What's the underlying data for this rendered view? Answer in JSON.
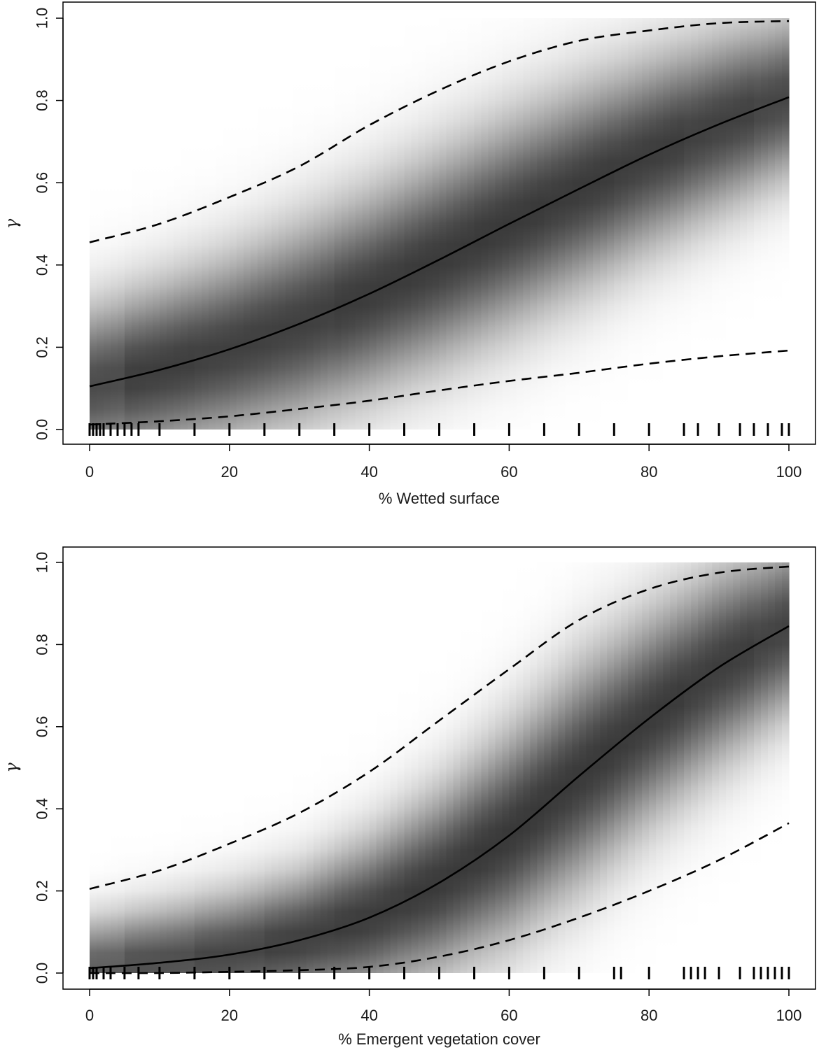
{
  "chart_data": [
    {
      "type": "line",
      "title": "",
      "xlabel": "% Wetted surface",
      "ylabel": "γ",
      "xlim": [
        0,
        100
      ],
      "ylim": [
        0,
        1
      ],
      "xticks": [
        "0",
        "20",
        "40",
        "60",
        "80",
        "100"
      ],
      "yticks": [
        "0.0",
        "0.2",
        "0.4",
        "0.6",
        "0.8",
        "1.0"
      ],
      "grid": false,
      "background": "grayscale posterior density shading",
      "x": [
        0,
        10,
        20,
        30,
        40,
        50,
        60,
        70,
        80,
        90,
        100
      ],
      "series": [
        {
          "name": "",
          "style": "solid",
          "values": [
            0.105,
            0.145,
            0.195,
            0.257,
            0.33,
            0.413,
            0.5,
            0.585,
            0.668,
            0.742,
            0.808
          ]
        },
        {
          "name": "",
          "style": "dashed",
          "values": [
            0.455,
            0.5,
            0.565,
            0.64,
            0.74,
            0.825,
            0.895,
            0.945,
            0.97,
            0.988,
            0.993
          ]
        },
        {
          "name": "",
          "style": "dashed",
          "values": [
            0.012,
            0.02,
            0.032,
            0.05,
            0.07,
            0.095,
            0.118,
            0.138,
            0.16,
            0.178,
            0.192
          ]
        }
      ],
      "rug": [
        0,
        0.5,
        1,
        1.5,
        2,
        3,
        4,
        5,
        6,
        7,
        10,
        15,
        20,
        25,
        30,
        35,
        40,
        45,
        50,
        55,
        60,
        65,
        70,
        75,
        80,
        85,
        87,
        90,
        93,
        95,
        97,
        99,
        100
      ],
      "density": {
        "mean": [
          0.105,
          0.145,
          0.195,
          0.257,
          0.33,
          0.413,
          0.5,
          0.585,
          0.668,
          0.742,
          0.808
        ],
        "sd": [
          0.13,
          0.14,
          0.15,
          0.16,
          0.165,
          0.17,
          0.17,
          0.165,
          0.155,
          0.145,
          0.13
        ],
        "peak_shade": [
          "#4a4a4a",
          "#3d3d3d",
          "#3f3f3f",
          "#3f3f3f",
          "#3b3b3b",
          "#3a3a3a",
          "#393939",
          "#3a3a3a",
          "#3c3c3c",
          "#404040",
          "#454545"
        ]
      }
    },
    {
      "type": "line",
      "title": "",
      "xlabel": "% Emergent vegetation cover",
      "ylabel": "γ",
      "xlim": [
        0,
        100
      ],
      "ylim": [
        0,
        1
      ],
      "xticks": [
        "0",
        "20",
        "40",
        "60",
        "80",
        "100"
      ],
      "yticks": [
        "0.0",
        "0.2",
        "0.4",
        "0.6",
        "0.8",
        "1.0"
      ],
      "grid": false,
      "background": "grayscale posterior density shading",
      "x": [
        0,
        10,
        20,
        30,
        40,
        50,
        60,
        70,
        80,
        90,
        100
      ],
      "series": [
        {
          "name": "",
          "style": "solid",
          "values": [
            0.012,
            0.025,
            0.045,
            0.08,
            0.135,
            0.22,
            0.335,
            0.48,
            0.62,
            0.745,
            0.845
          ]
        },
        {
          "name": "",
          "style": "dashed",
          "values": [
            0.205,
            0.25,
            0.315,
            0.39,
            0.49,
            0.615,
            0.74,
            0.86,
            0.935,
            0.975,
            0.99
          ]
        },
        {
          "name": "",
          "style": "dashed",
          "values": [
            0.0,
            0.0,
            0.003,
            0.007,
            0.015,
            0.04,
            0.08,
            0.135,
            0.2,
            0.275,
            0.365
          ]
        }
      ],
      "rug": [
        0,
        0.5,
        1,
        2,
        3,
        5,
        7,
        10,
        15,
        20,
        25,
        30,
        35,
        40,
        45,
        50,
        55,
        60,
        65,
        70,
        75,
        76,
        80,
        85,
        86,
        87,
        88,
        90,
        93,
        95,
        96,
        97,
        98,
        99,
        100
      ],
      "density": {
        "mean": [
          0.012,
          0.025,
          0.045,
          0.08,
          0.135,
          0.22,
          0.335,
          0.48,
          0.62,
          0.745,
          0.845
        ],
        "sd": [
          0.08,
          0.09,
          0.1,
          0.11,
          0.13,
          0.15,
          0.17,
          0.18,
          0.17,
          0.16,
          0.14
        ],
        "peak_shade": [
          "#5a5a5a",
          "#4c4c4c",
          "#444444",
          "#3e3e3e",
          "#3b3b3b",
          "#393939",
          "#383838",
          "#393939",
          "#3a3a3a",
          "#3d3d3d",
          "#424242"
        ]
      }
    }
  ]
}
